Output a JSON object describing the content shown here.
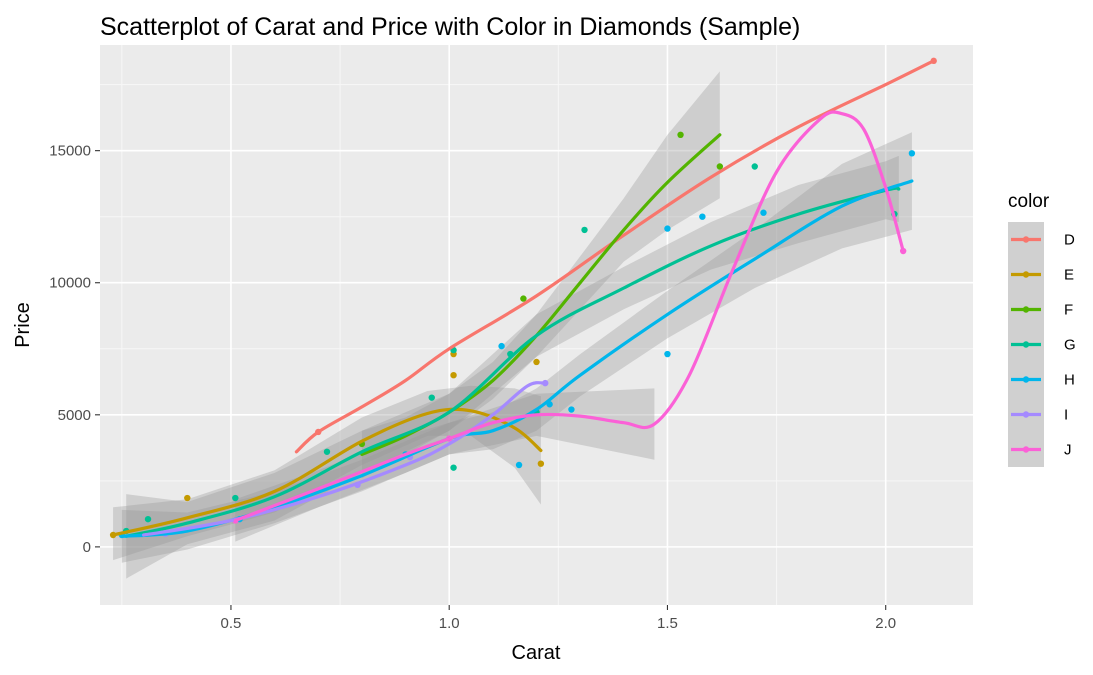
{
  "chart_data": {
    "type": "scatter",
    "title": "Scatterplot of Carat and Price with Color in Diamonds (Sample)",
    "xlabel": "Carat",
    "ylabel": "Price",
    "xlim": [
      0.2,
      2.2
    ],
    "ylim": [
      -2200,
      19000
    ],
    "x_ticks": [
      "0.5",
      "1.0",
      "1.5",
      "2.0"
    ],
    "x_tick_values": [
      0.5,
      1.0,
      1.5,
      2.0
    ],
    "y_ticks": [
      "0",
      "5000",
      "10000",
      "15000"
    ],
    "y_tick_values": [
      0,
      5000,
      10000,
      15000
    ],
    "grid": true,
    "legend": {
      "title": "color",
      "position": "right"
    },
    "series": [
      {
        "name": "D",
        "color": "#F8766D",
        "points": [
          [
            0.7,
            4350
          ],
          [
            2.11,
            18400
          ]
        ],
        "smooth": [
          [
            0.65,
            3600
          ],
          [
            0.7,
            4350
          ],
          [
            0.8,
            5300
          ],
          [
            0.9,
            6300
          ],
          [
            1.0,
            7500
          ],
          [
            1.2,
            9500
          ],
          [
            1.4,
            11800
          ],
          [
            1.6,
            14000
          ],
          [
            1.8,
            15900
          ],
          [
            2.0,
            17500
          ],
          [
            2.11,
            18400
          ]
        ],
        "ribbon": []
      },
      {
        "name": "E",
        "color": "#C49A00",
        "points": [
          [
            0.23,
            450
          ],
          [
            0.4,
            1850
          ],
          [
            1.01,
            7300
          ],
          [
            1.01,
            6500
          ],
          [
            1.2,
            7000
          ],
          [
            1.21,
            3150
          ]
        ],
        "smooth": [
          [
            0.23,
            450
          ],
          [
            0.4,
            1100
          ],
          [
            0.6,
            2100
          ],
          [
            0.8,
            4000
          ],
          [
            0.95,
            5050
          ],
          [
            1.05,
            5150
          ],
          [
            1.15,
            4500
          ],
          [
            1.21,
            3650
          ]
        ],
        "ribbon": [
          [
            0.23,
            -500,
            1500
          ],
          [
            0.4,
            400,
            1800
          ],
          [
            0.6,
            1300,
            2900
          ],
          [
            0.8,
            3100,
            4900
          ],
          [
            0.95,
            4200,
            5900
          ],
          [
            1.05,
            4200,
            6100
          ],
          [
            1.15,
            3000,
            6000
          ],
          [
            1.21,
            1600,
            5700
          ]
        ]
      },
      {
        "name": "F",
        "color": "#53B400",
        "points": [
          [
            0.8,
            3900
          ],
          [
            1.17,
            9400
          ],
          [
            1.53,
            15600
          ],
          [
            1.62,
            14400
          ]
        ],
        "smooth": [
          [
            0.8,
            3500
          ],
          [
            0.9,
            4200
          ],
          [
            1.0,
            5100
          ],
          [
            1.1,
            6300
          ],
          [
            1.2,
            8000
          ],
          [
            1.3,
            10000
          ],
          [
            1.4,
            12000
          ],
          [
            1.5,
            13800
          ],
          [
            1.62,
            15600
          ]
        ],
        "ribbon": [
          [
            0.8,
            2600,
            4400
          ],
          [
            0.9,
            3500,
            4900
          ],
          [
            1.0,
            4400,
            5800
          ],
          [
            1.1,
            5600,
            7000
          ],
          [
            1.2,
            7200,
            8800
          ],
          [
            1.3,
            9000,
            11000
          ],
          [
            1.4,
            10800,
            13200
          ],
          [
            1.5,
            12000,
            15600
          ],
          [
            1.62,
            13200,
            18000
          ]
        ]
      },
      {
        "name": "G",
        "color": "#00C094",
        "points": [
          [
            0.26,
            600
          ],
          [
            0.31,
            1050
          ],
          [
            0.51,
            1850
          ],
          [
            0.72,
            3600
          ],
          [
            0.96,
            5650
          ],
          [
            1.01,
            3000
          ],
          [
            1.01,
            7450
          ],
          [
            1.14,
            7300
          ],
          [
            1.2,
            5100
          ],
          [
            1.31,
            12000
          ],
          [
            1.7,
            14400
          ],
          [
            2.02,
            12600
          ]
        ],
        "smooth": [
          [
            0.26,
            400
          ],
          [
            0.4,
            900
          ],
          [
            0.6,
            1900
          ],
          [
            0.8,
            3600
          ],
          [
            1.0,
            5100
          ],
          [
            1.2,
            8000
          ],
          [
            1.4,
            9800
          ],
          [
            1.6,
            11400
          ],
          [
            1.8,
            12600
          ],
          [
            2.0,
            13500
          ],
          [
            2.03,
            13550
          ]
        ],
        "ribbon": [
          [
            0.26,
            -1200,
            2000
          ],
          [
            0.4,
            100,
            1700
          ],
          [
            0.6,
            1000,
            2800
          ],
          [
            0.8,
            2800,
            4400
          ],
          [
            1.0,
            4400,
            5800
          ],
          [
            1.2,
            7200,
            8800
          ],
          [
            1.4,
            9000,
            10600
          ],
          [
            1.6,
            10500,
            12300
          ],
          [
            1.8,
            11500,
            13700
          ],
          [
            2.0,
            12400,
            14600
          ],
          [
            2.03,
            12300,
            14800
          ]
        ]
      },
      {
        "name": "H",
        "color": "#00B6EB",
        "points": [
          [
            0.25,
            450
          ],
          [
            0.52,
            1050
          ],
          [
            0.9,
            3500
          ],
          [
            1.12,
            7600
          ],
          [
            1.16,
            3100
          ],
          [
            1.23,
            5400
          ],
          [
            1.28,
            5200
          ],
          [
            1.5,
            7300
          ],
          [
            1.5,
            12050
          ],
          [
            1.58,
            12500
          ],
          [
            1.72,
            12650
          ],
          [
            2.06,
            14900
          ]
        ],
        "smooth": [
          [
            0.25,
            400
          ],
          [
            0.4,
            600
          ],
          [
            0.6,
            1500
          ],
          [
            0.8,
            2700
          ],
          [
            1.0,
            4100
          ],
          [
            1.1,
            4400
          ],
          [
            1.2,
            5200
          ],
          [
            1.3,
            6500
          ],
          [
            1.5,
            8800
          ],
          [
            1.7,
            10900
          ],
          [
            1.9,
            12900
          ],
          [
            2.06,
            13850
          ]
        ],
        "ribbon": [
          [
            0.25,
            -600,
            1400
          ],
          [
            0.4,
            -100,
            1300
          ],
          [
            0.6,
            900,
            2100
          ],
          [
            0.8,
            2100,
            3300
          ],
          [
            1.0,
            3500,
            4700
          ],
          [
            1.1,
            3700,
            5100
          ],
          [
            1.2,
            4400,
            6000
          ],
          [
            1.3,
            5700,
            7300
          ],
          [
            1.5,
            7900,
            9700
          ],
          [
            1.7,
            9800,
            12000
          ],
          [
            1.9,
            11300,
            14500
          ],
          [
            2.06,
            12000,
            15700
          ]
        ]
      },
      {
        "name": "I",
        "color": "#A58AFF",
        "points": [
          [
            0.35,
            500
          ],
          [
            0.79,
            2350
          ],
          [
            0.91,
            3400
          ],
          [
            1.22,
            6200
          ]
        ],
        "smooth": [
          [
            0.3,
            450
          ],
          [
            0.5,
            1000
          ],
          [
            0.7,
            1900
          ],
          [
            0.9,
            3100
          ],
          [
            1.0,
            3900
          ],
          [
            1.1,
            5000
          ],
          [
            1.18,
            6100
          ],
          [
            1.22,
            6200
          ]
        ],
        "ribbon": []
      },
      {
        "name": "J",
        "color": "#FB61D7",
        "points": [
          [
            0.51,
            1000
          ],
          [
            1.0,
            4100
          ],
          [
            2.04,
            11200
          ]
        ],
        "smooth": [
          [
            0.51,
            1000
          ],
          [
            0.7,
            2200
          ],
          [
            0.9,
            3500
          ],
          [
            1.0,
            4100
          ],
          [
            1.1,
            4700
          ],
          [
            1.2,
            5000
          ],
          [
            1.3,
            4950
          ],
          [
            1.4,
            4700
          ],
          [
            1.47,
            4650
          ],
          [
            1.55,
            6500
          ],
          [
            1.65,
            10500
          ],
          [
            1.75,
            14200
          ],
          [
            1.85,
            16200
          ],
          [
            1.9,
            16400
          ],
          [
            1.95,
            15800
          ],
          [
            2.0,
            13600
          ],
          [
            2.04,
            11200
          ]
        ],
        "ribbon": [
          [
            0.51,
            200,
            1800
          ],
          [
            0.7,
            1500,
            2900
          ],
          [
            0.9,
            2800,
            4200
          ],
          [
            1.0,
            3500,
            4700
          ],
          [
            1.2,
            4200,
            5800
          ],
          [
            1.47,
            3300,
            6000
          ]
        ]
      }
    ]
  }
}
